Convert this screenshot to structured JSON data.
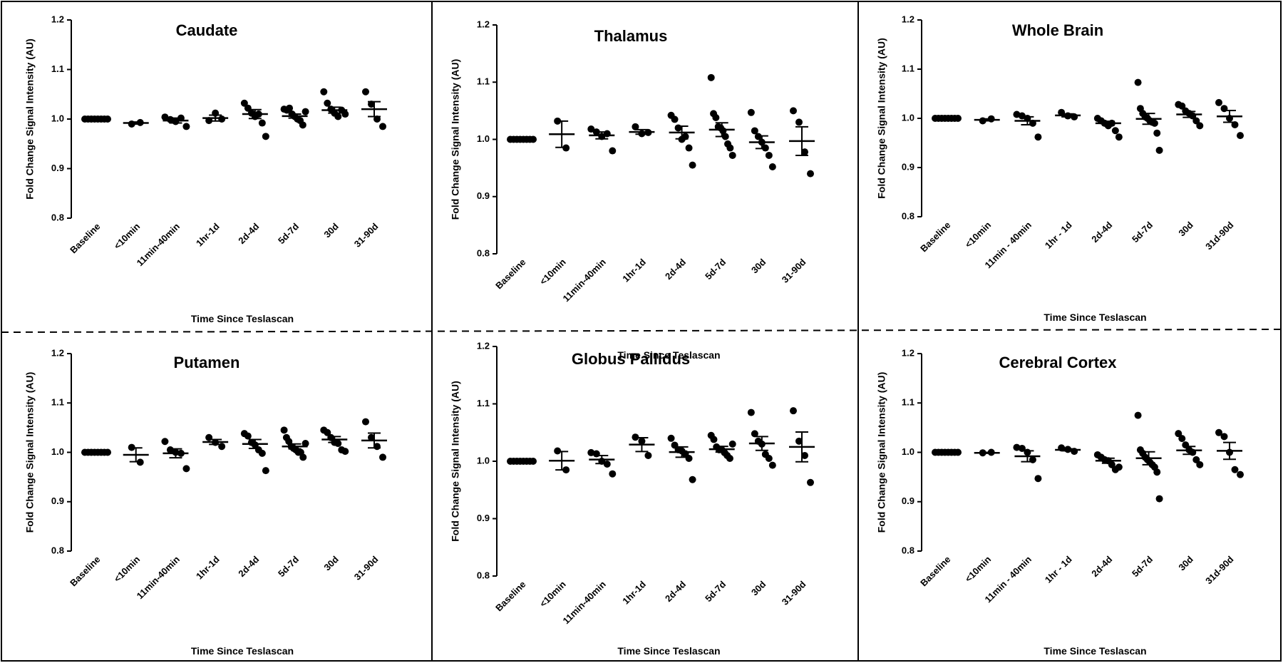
{
  "chart_data": [
    {
      "type": "scatter",
      "title": "Caudate",
      "xlabel": "Time Since Teslascan",
      "ylabel": "Fold Change Signal Intensity (AU)",
      "ylim": [
        0.8,
        1.2
      ],
      "yticks": [
        "0.8",
        "0.9",
        "1.0",
        "1.1",
        "1.2"
      ],
      "categories": [
        "Baseline",
        "<10min",
        "11min-40min",
        "1hr-1d",
        "2d-4d",
        "5d-7d",
        "30d",
        "31-90d"
      ],
      "points": [
        [
          1.0,
          1.0,
          1.0,
          1.0,
          1.0,
          1.0,
          1.0,
          1.0
        ],
        [
          0.99,
          0.993
        ],
        [
          1.004,
          0.999,
          0.995,
          1.002,
          0.985
        ],
        [
          0.997,
          1.012,
          1.0
        ],
        [
          1.032,
          1.022,
          1.012,
          1.005,
          1.01,
          0.992,
          0.965
        ],
        [
          1.02,
          1.018,
          1.022,
          1.01,
          1.005,
          1.0,
          0.997,
          0.988,
          1.015
        ],
        [
          1.055,
          1.032,
          1.02,
          1.012,
          1.005,
          1.018,
          1.01
        ],
        [
          1.055,
          1.03,
          1.0,
          0.985
        ]
      ],
      "mean": [
        1.0,
        0.992,
        0.997,
        1.002,
        1.01,
        1.006,
        1.018,
        1.02
      ],
      "sem": [
        0.0,
        0.002,
        0.005,
        0.006,
        0.009,
        0.004,
        0.006,
        0.015
      ]
    },
    {
      "type": "scatter",
      "title": "Thalamus",
      "xlabel": "Time Since Teslascan",
      "ylabel": "Fold Change Signal Intensity (AU)",
      "ylim": [
        0.8,
        1.2
      ],
      "yticks": [
        "0.8",
        "0.9",
        "1.0",
        "1.1",
        "1.2"
      ],
      "categories": [
        "Baseline",
        "<10min",
        "11min-40min",
        "1hr-1d",
        "2d-4d",
        "5d-7d",
        "30d",
        "31-90d"
      ],
      "points": [
        [
          1.0,
          1.0,
          1.0,
          1.0,
          1.0,
          1.0,
          1.0,
          1.0
        ],
        [
          1.032,
          0.985
        ],
        [
          1.018,
          1.013,
          1.005,
          1.01,
          0.98
        ],
        [
          1.022,
          1.01,
          1.012
        ],
        [
          1.042,
          1.035,
          1.02,
          1.0,
          1.005,
          0.985,
          0.955
        ],
        [
          1.108,
          1.045,
          1.038,
          1.022,
          1.02,
          1.015,
          1.005,
          0.992,
          0.985,
          0.972
        ],
        [
          1.047,
          1.015,
          1.005,
          0.995,
          0.985,
          0.972,
          0.952
        ],
        [
          1.05,
          1.03,
          0.978,
          0.94
        ]
      ],
      "mean": [
        1.0,
        1.009,
        1.007,
        1.013,
        1.012,
        1.017,
        0.995,
        0.997
      ],
      "sem": [
        0.0,
        0.023,
        0.006,
        0.004,
        0.011,
        0.012,
        0.011,
        0.025
      ]
    },
    {
      "type": "scatter",
      "title": "Whole Brain",
      "xlabel": "Time Since Teslascan",
      "ylabel": "Fold Change Signal Intensity (AU)",
      "ylim": [
        0.8,
        1.2
      ],
      "yticks": [
        "0.8",
        "0.9",
        "1.0",
        "1.1",
        "1.2"
      ],
      "categories": [
        "Baseline",
        "<10min",
        "11min - 40min",
        "1hr - 1d",
        "2d-4d",
        "5d-7d",
        "30d",
        "31d-90d"
      ],
      "points": [
        [
          1.0,
          1.0,
          1.0,
          1.0,
          1.0,
          1.0,
          1.0,
          1.0
        ],
        [
          0.995,
          0.999
        ],
        [
          1.008,
          1.005,
          1.0,
          0.99,
          0.962
        ],
        [
          1.012,
          1.005,
          1.003
        ],
        [
          1.0,
          0.995,
          0.99,
          0.985,
          0.99,
          0.975,
          0.962
        ],
        [
          1.073,
          1.02,
          1.01,
          1.003,
          1.0,
          0.995,
          0.992,
          0.99,
          0.97,
          0.935
        ],
        [
          1.028,
          1.025,
          1.015,
          1.01,
          1.005,
          0.995,
          0.985
        ],
        [
          1.032,
          1.02,
          1.0,
          0.987,
          0.965
        ]
      ],
      "mean": [
        1.0,
        0.997,
        0.995,
        1.006,
        0.99,
        0.999,
        1.008,
        1.004
      ],
      "sem": [
        0.0,
        0.002,
        0.008,
        0.003,
        0.004,
        0.011,
        0.006,
        0.012
      ]
    },
    {
      "type": "scatter",
      "title": "Putamen",
      "xlabel": "Time Since Teslascan",
      "ylabel": "Fold Change Signal Intensity (AU)",
      "ylim": [
        0.8,
        1.2
      ],
      "yticks": [
        "0.8",
        "0.9",
        "1.0",
        "1.1",
        "1.2"
      ],
      "categories": [
        "Baseline",
        "<10min",
        "11min-40min",
        "1hr-1d",
        "2d-4d",
        "5d-7d",
        "30d",
        "31-90d"
      ],
      "points": [
        [
          1.0,
          1.0,
          1.0,
          1.0,
          1.0,
          1.0,
          1.0,
          1.0
        ],
        [
          1.01,
          0.98
        ],
        [
          1.022,
          1.005,
          1.0,
          0.998,
          0.967
        ],
        [
          1.03,
          1.02,
          1.012
        ],
        [
          1.038,
          1.033,
          1.02,
          1.015,
          1.005,
          0.998,
          0.963
        ],
        [
          1.045,
          1.03,
          1.022,
          1.012,
          1.008,
          1.005,
          1.0,
          1.0,
          0.99,
          1.018
        ],
        [
          1.045,
          1.04,
          1.03,
          1.02,
          1.018,
          1.005,
          1.002
        ],
        [
          1.062,
          1.03,
          1.012,
          0.99
        ]
      ],
      "mean": [
        1.0,
        0.995,
        0.998,
        1.021,
        1.017,
        1.012,
        1.026,
        1.024
      ],
      "sem": [
        0.0,
        0.014,
        0.009,
        0.005,
        0.009,
        0.005,
        0.006,
        0.015
      ]
    },
    {
      "type": "scatter",
      "title": "Globus Pallidus",
      "xlabel": "Time Since Teslascan",
      "ylabel": "Fold Change Signal Intensity (AU)",
      "ylim": [
        0.8,
        1.2
      ],
      "yticks": [
        "0.8",
        "0.9",
        "1.0",
        "1.1",
        "1.2"
      ],
      "categories": [
        "Baseline",
        "<10min",
        "11min-40min",
        "1hr-1d",
        "2d-4d",
        "5d-7d",
        "30d",
        "31-90d"
      ],
      "points": [
        [
          1.0,
          1.0,
          1.0,
          1.0,
          1.0,
          1.0,
          1.0,
          1.0
        ],
        [
          1.018,
          0.985
        ],
        [
          1.015,
          1.013,
          1.0,
          0.995,
          0.978
        ],
        [
          1.042,
          1.035,
          1.01
        ],
        [
          1.04,
          1.028,
          1.02,
          1.018,
          1.013,
          1.005,
          0.968
        ],
        [
          1.045,
          1.038,
          1.025,
          1.02,
          1.02,
          1.015,
          1.01,
          1.005,
          1.03
        ],
        [
          1.085,
          1.048,
          1.035,
          1.03,
          1.012,
          1.005,
          0.993
        ],
        [
          1.088,
          1.035,
          1.01,
          0.963
        ]
      ],
      "mean": [
        1.0,
        1.001,
        1.003,
        1.029,
        1.016,
        1.021,
        1.031,
        1.025
      ],
      "sem": [
        0.0,
        0.016,
        0.007,
        0.012,
        0.009,
        0.005,
        0.012,
        0.026
      ]
    },
    {
      "type": "scatter",
      "title": "Cerebral Cortex",
      "xlabel": "Time Since Teslascan",
      "ylabel": "Fold Change Signal Intensity (AU)",
      "ylim": [
        0.8,
        1.2
      ],
      "yticks": [
        "0.8",
        "0.9",
        "1.0",
        "1.1",
        "1.2"
      ],
      "categories": [
        "Baseline",
        "<10min",
        "11min - 40min",
        "1hr - 1d",
        "2d-4d",
        "5d-7d",
        "30d",
        "31d-90d"
      ],
      "points": [
        [
          1.0,
          1.0,
          1.0,
          1.0,
          1.0,
          1.0,
          1.0,
          1.0
        ],
        [
          0.999,
          1.0
        ],
        [
          1.01,
          1.008,
          1.0,
          0.985,
          0.947
        ],
        [
          1.009,
          1.006,
          1.002
        ],
        [
          0.995,
          0.99,
          0.985,
          0.983,
          0.975,
          0.965,
          0.97
        ],
        [
          1.075,
          1.005,
          0.998,
          0.99,
          0.985,
          0.98,
          0.975,
          0.97,
          0.96,
          0.906
        ],
        [
          1.038,
          1.028,
          1.015,
          1.005,
          1.0,
          0.985,
          0.975
        ],
        [
          1.04,
          1.032,
          1.0,
          0.965,
          0.955
        ]
      ],
      "mean": [
        1.0,
        0.999,
        0.992,
        1.005,
        0.983,
        0.988,
        1.004,
        1.003
      ],
      "sem": [
        0.0,
        0.001,
        0.011,
        0.002,
        0.005,
        0.013,
        0.008,
        0.017
      ]
    }
  ]
}
